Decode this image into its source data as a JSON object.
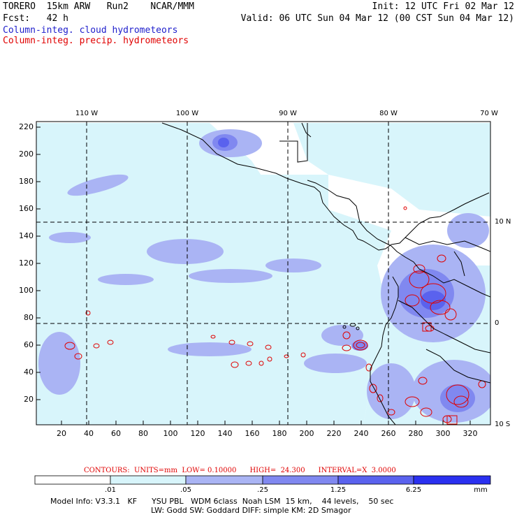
{
  "header": {
    "model_line": "TORERO  15km ARW   Run2    NCAR/MMM",
    "init": "Init: 12 UTC Fri 02 Mar 12",
    "fcst": "Fcst:   42 h",
    "valid": "Valid: 06 UTC Sun 04 Mar 12 (00 CST Sun 04 Mar 12)",
    "legend_cloud": "Column-integ. cloud hydrometeors",
    "legend_precip": "Column-integ. precip. hydrometeors"
  },
  "colors": {
    "cloud_text": "#2020cc",
    "precip_text": "#e00000",
    "shade_1": "#d8f5fb",
    "shade_2": "#aab4f4",
    "shade_3": "#8088f0",
    "shade_4": "#5a62ee",
    "shade_5": "#2a30f0",
    "contour": "#e00000"
  },
  "map": {
    "top_lon_labels": [
      "110 W",
      "100 W",
      "90 W",
      "80 W",
      "70 W"
    ],
    "right_lat_labels": [
      "10 N",
      "0",
      "10 S"
    ],
    "y_ticks": [
      "220",
      "200",
      "180",
      "160",
      "140",
      "120",
      "100",
      "80",
      "60",
      "40",
      "20"
    ],
    "x_ticks": [
      "20",
      "40",
      "60",
      "80",
      "100",
      "120",
      "140",
      "160",
      "180",
      "200",
      "220",
      "240",
      "260",
      "280",
      "300",
      "320"
    ]
  },
  "contours_text": "CONTOURS:  UNITS=mm  LOW= 0.10000      HIGH=  24.300      INTERVAL=X  3.0000",
  "colorbar": {
    "labels": [
      ".01",
      ".05",
      ".25",
      "1.25",
      "6.25"
    ],
    "unit": "mm"
  },
  "model_info": {
    "line1": "Model Info: V3.3.1   KF      YSU PBL   WDM 6class  Noah LSM  15 km,    44 levels,    50 sec",
    "line2": "LW: Godd SW: Goddard DIFF: simple KM: 2D Smagor"
  }
}
